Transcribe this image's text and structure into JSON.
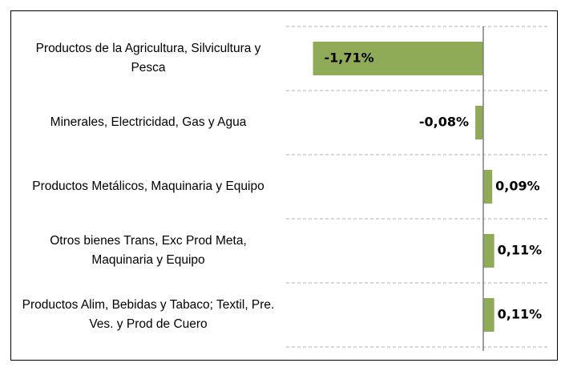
{
  "chart_data": {
    "type": "bar",
    "orientation": "horizontal",
    "categories": [
      "Productos de la Agricultura, Silvicultura y Pesca",
      "Minerales, Electricidad, Gas y Agua",
      "Productos Metálicos, Maquinaria y Equipo",
      "Otros bienes Trans, Exc Prod Meta, Maquinaria y Equipo",
      "Productos Alim, Bebidas y Tabaco; Textil, Pre. Ves. y Prod de Cuero"
    ],
    "values": [
      -1.71,
      -0.08,
      0.09,
      0.11,
      0.11
    ],
    "value_labels": [
      "-1,71%",
      "-0,08%",
      "0,09%",
      "0,11%",
      "0,11%"
    ],
    "color": "#8fab58",
    "xlim": [
      -1.98,
      0.66
    ]
  }
}
